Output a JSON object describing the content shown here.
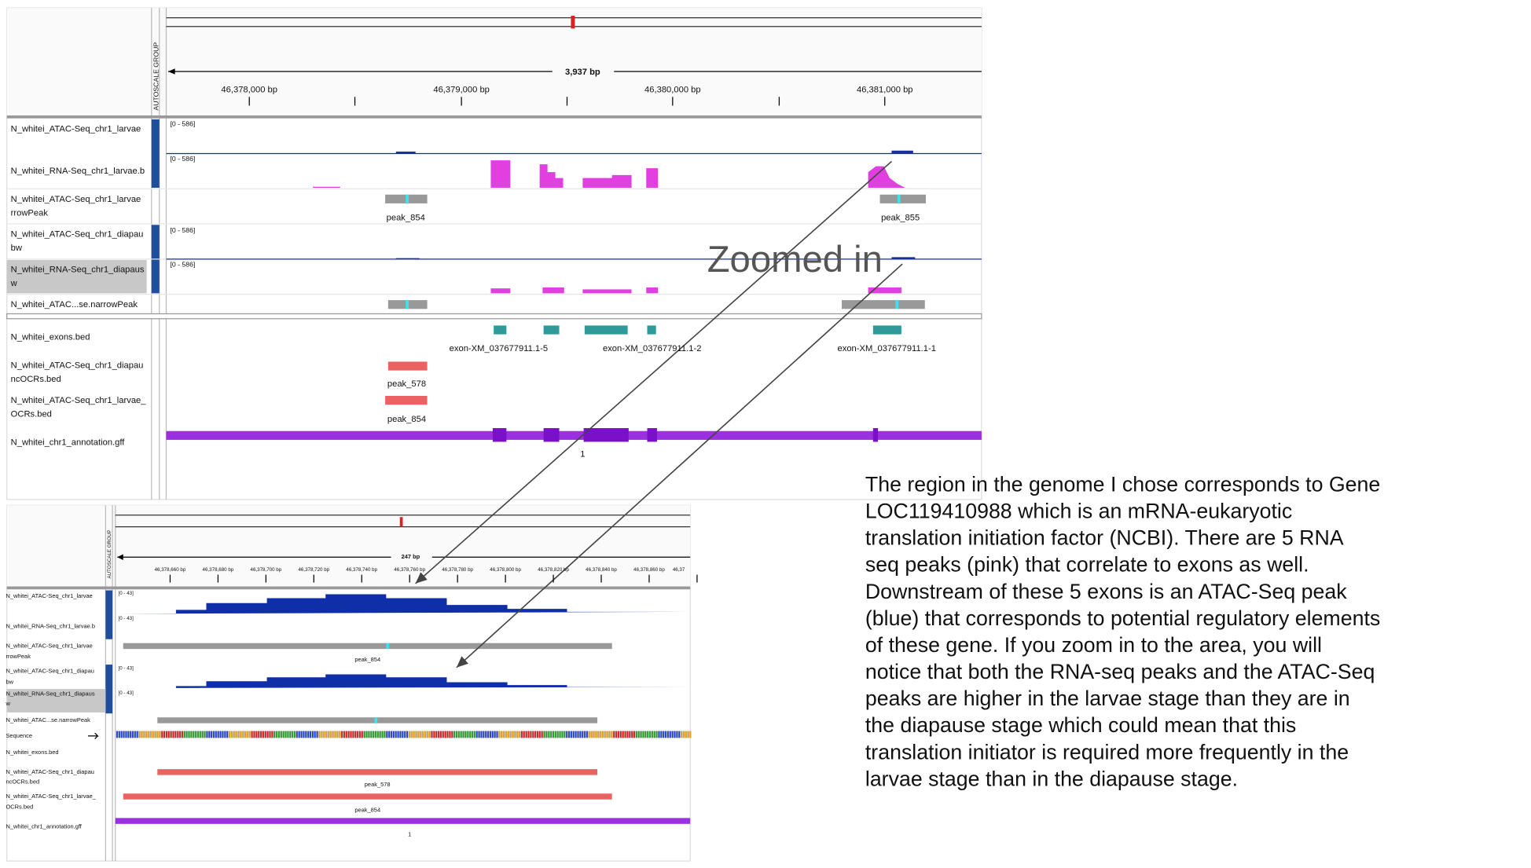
{
  "top_panel": {
    "autoscale": "AUTOSCALE GROUP",
    "span": "3,937 bp",
    "ruler_labels": [
      "46,378,000 bp",
      "46,379,000 bp",
      "46,380,000 bp",
      "46,381,000 bp"
    ],
    "tracks": [
      [
        "N_whitei_ATAC-Seq_chr1_larvae"
      ],
      [
        "N_whitei_RNA-Seq_chr1_larvae.b"
      ],
      [
        "N_whitei_ATAC-Seq_chr1_larvae",
        "rrowPeak"
      ],
      [
        "N_whitei_ATAC-Seq_chr1_diapau",
        "bw"
      ],
      [
        "N_whitei_RNA-Seq_chr1_diapaus",
        "w"
      ],
      [
        "N_whitei_ATAC...se.narrowPeak"
      ],
      [
        "N_whitei_exons.bed"
      ],
      [
        "N_whitei_ATAC-Seq_chr1_diapau",
        "ncOCRs.bed"
      ],
      [
        "N_whitei_ATAC-Seq_chr1_larvae_",
        "OCRs.bed"
      ],
      [
        "N_whitei_chr1_annotation.gff"
      ]
    ],
    "data_ranges": [
      "[0 - 586]",
      "[0 - 586]",
      "[0 - 586]",
      "[0 - 586]"
    ],
    "features": [
      "peak_854",
      "peak_855",
      "exon-XM_037677911.1-5",
      "exon-XM_037677911.1-2",
      "exon-XM_037677911.1-1",
      "peak_578",
      "peak_854",
      "1"
    ]
  },
  "bottom_panel": {
    "autoscale": "AUTOSCALE GROUP",
    "span": "247 bp",
    "ruler_labels": [
      "46,378,660 bp",
      "46,378,680 bp",
      "46,378,700 bp",
      "46,378,720 bp",
      "46,378,740 bp",
      "46,378,760 bp",
      "46,378,780 bp",
      "46,378,800 bp",
      "46,378,820 bp",
      "46,378,840 bp",
      "46,378,860 bp",
      "46,37"
    ],
    "tracks": [
      [
        "N_whitei_ATAC-Seq_chr1_larvae"
      ],
      [
        "N_whitei_RNA-Seq_chr1_larvae.b"
      ],
      [
        "N_whitei_ATAC-Seq_chr1_larvae",
        "rrowPeak"
      ],
      [
        "N_whitei_ATAC-Seq_chr1_diapau",
        "bw"
      ],
      [
        "N_whitei_RNA-Seq_chr1_diapaus",
        "w"
      ],
      [
        "N_whitei_ATAC...se.narrowPeak"
      ],
      [
        "Sequence"
      ],
      [
        "N_whitei_exons.bed"
      ],
      [
        "N_whitei_ATAC-Seq_chr1_diapau",
        "ncOCRs.bed"
      ],
      [
        "N_whitei_ATAC-Seq_chr1_larvae_",
        "OCRs.bed"
      ],
      [
        "N_whitei_chr1_annotation.gff"
      ]
    ],
    "data_ranges": [
      "[0 - 43]",
      "[0 - 43]",
      "[0 - 43]",
      "[0 - 43]"
    ],
    "features": [
      "peak_854",
      "peak_578",
      "peak_854",
      "1"
    ]
  },
  "annotation": "Zoomed in",
  "description": [
    "The region in the genome I chose corresponds to Gene",
    "LOC119410988 which is an mRNA-eukaryotic",
    "translation initiation factor (NCBI). There are 5 RNA",
    "seq peaks (pink) that correlate to exons as well.",
    "Downstream of these 5 exons is an ATAC-Seq peak",
    "(blue) that corresponds to potential regulatory elements",
    "of these gene. If you zoom in to the area, you will",
    "notice that both the RNA-seq peaks and the ATAC-Seq",
    "peaks are higher in the larvae stage than they are in",
    "the diapause stage which could mean that this",
    "translation initiator is required more frequently in the",
    "larvae stage than in the diapause stage."
  ]
}
